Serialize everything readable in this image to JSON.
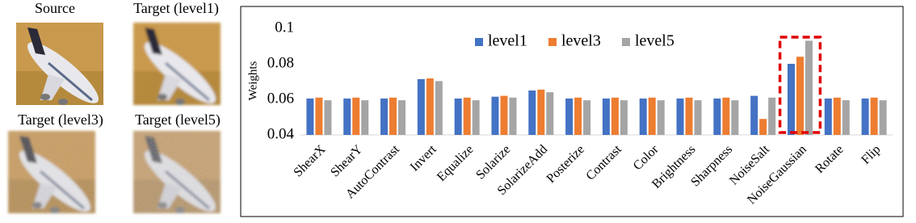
{
  "images": [
    {
      "label": "Source"
    },
    {
      "label": "Target (level1)"
    },
    {
      "label": "Target (level3)"
    },
    {
      "label": "Target (level5)"
    }
  ],
  "chart_data": {
    "type": "bar",
    "y_label": "Weights",
    "categories": [
      "ShearX",
      "ShearY",
      "AutoContrast",
      "Invert",
      "Equalize",
      "Solarize",
      "SolarizeAdd",
      "Posterize",
      "Contrast",
      "Color",
      "Brightness",
      "Sharpness",
      "NoiseSalt",
      "NoiseGaussian",
      "Rotate",
      "Flip"
    ],
    "series": [
      {
        "name": "level1",
        "color": "#4472c4",
        "values": [
          0.0605,
          0.0605,
          0.0605,
          0.0714,
          0.0605,
          0.0615,
          0.065,
          0.0605,
          0.0605,
          0.0605,
          0.0605,
          0.0605,
          0.062,
          0.08,
          0.0605,
          0.0605
        ]
      },
      {
        "name": "level3",
        "color": "#ed7d31",
        "values": [
          0.061,
          0.061,
          0.061,
          0.0718,
          0.061,
          0.062,
          0.0655,
          0.061,
          0.061,
          0.061,
          0.061,
          0.061,
          0.049,
          0.084,
          0.061,
          0.061
        ]
      },
      {
        "name": "level5",
        "color": "#a5a5a5",
        "values": [
          0.0595,
          0.0595,
          0.0595,
          0.0703,
          0.0595,
          0.061,
          0.064,
          0.0595,
          0.0595,
          0.0595,
          0.0595,
          0.0595,
          0.061,
          0.093,
          0.0595,
          0.0595
        ]
      }
    ],
    "ylim": [
      0.04,
      0.1
    ],
    "yticks": [
      0.04,
      0.06,
      0.08,
      0.1
    ],
    "grid": false,
    "legend": "top"
  }
}
